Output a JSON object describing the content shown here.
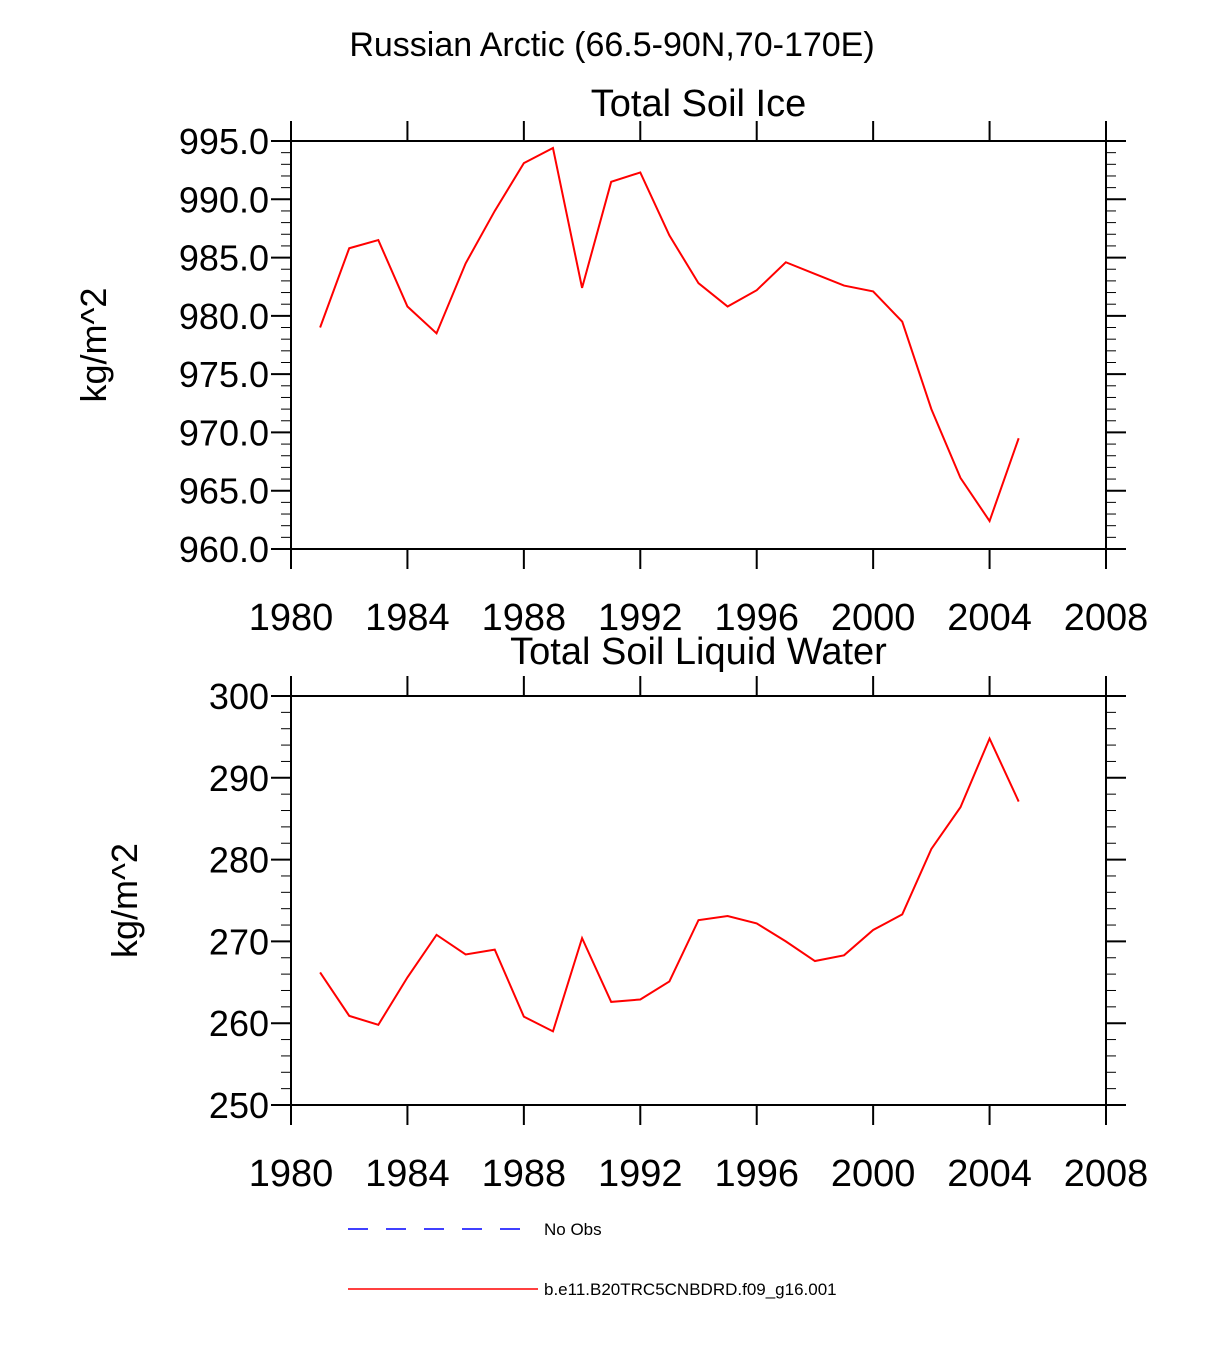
{
  "figure_title": "Russian Arctic (66.5-90N,70-170E)",
  "colors": {
    "model": "#ff0000",
    "obs": "#0000ff",
    "axis": "#000000"
  },
  "legend": {
    "obs_label": "No Obs",
    "model_label": "b.e11.B20TRC5CNBDRD.f09_g16.001"
  },
  "chart_data": [
    {
      "type": "line",
      "title": "Total Soil Ice",
      "xlabel": "",
      "ylabel": "kg/m^2",
      "xlim": [
        1980,
        2008
      ],
      "ylim": [
        960,
        995
      ],
      "x_ticks": [
        1980,
        1984,
        1988,
        1992,
        1996,
        2000,
        2004,
        2008
      ],
      "x_tick_labels": [
        "1980",
        "1984",
        "1988",
        "1992",
        "1996",
        "2000",
        "2004",
        "2008"
      ],
      "y_ticks": [
        960,
        965,
        970,
        975,
        980,
        985,
        990,
        995
      ],
      "y_tick_labels": [
        "960.0",
        "965.0",
        "970.0",
        "975.0",
        "980.0",
        "985.0",
        "990.0",
        "995.0"
      ],
      "series": [
        {
          "name": "b.e11.B20TRC5CNBDRD.f09_g16.001",
          "x": [
            1981,
            1982,
            1983,
            1984,
            1985,
            1986,
            1987,
            1988,
            1989,
            1990,
            1991,
            1992,
            1993,
            1994,
            1995,
            1996,
            1997,
            1998,
            1999,
            2000,
            2001,
            2002,
            2003,
            2004,
            2005
          ],
          "values": [
            979.0,
            985.8,
            986.5,
            980.8,
            978.5,
            984.5,
            989.0,
            993.1,
            994.4,
            982.4,
            991.5,
            992.3,
            986.9,
            982.8,
            980.8,
            982.2,
            984.6,
            983.6,
            982.6,
            982.1,
            979.5,
            972.0,
            966.1,
            962.4,
            969.5
          ]
        }
      ]
    },
    {
      "type": "line",
      "title": "Total Soil Liquid Water",
      "xlabel": "",
      "ylabel": "kg/m^2",
      "xlim": [
        1980,
        2008
      ],
      "ylim": [
        250,
        300
      ],
      "x_ticks": [
        1980,
        1984,
        1988,
        1992,
        1996,
        2000,
        2004,
        2008
      ],
      "x_tick_labels": [
        "1980",
        "1984",
        "1988",
        "1992",
        "1996",
        "2000",
        "2004",
        "2008"
      ],
      "y_ticks": [
        250,
        260,
        270,
        280,
        290,
        300
      ],
      "y_tick_labels": [
        "250",
        "260",
        "270",
        "280",
        "290",
        "300"
      ],
      "series": [
        {
          "name": "b.e11.B20TRC5CNBDRD.f09_g16.001",
          "x": [
            1981,
            1982,
            1983,
            1984,
            1985,
            1986,
            1987,
            1988,
            1989,
            1990,
            1991,
            1992,
            1993,
            1994,
            1995,
            1996,
            1997,
            1998,
            1999,
            2000,
            2001,
            2002,
            2003,
            2004,
            2005
          ],
          "values": [
            266.2,
            260.9,
            259.8,
            265.6,
            270.8,
            268.4,
            269.0,
            260.8,
            259.0,
            270.4,
            262.6,
            262.9,
            265.1,
            272.6,
            273.1,
            272.2,
            270.0,
            267.6,
            268.3,
            271.4,
            273.3,
            281.3,
            286.4,
            294.8,
            287.1
          ]
        }
      ]
    }
  ]
}
